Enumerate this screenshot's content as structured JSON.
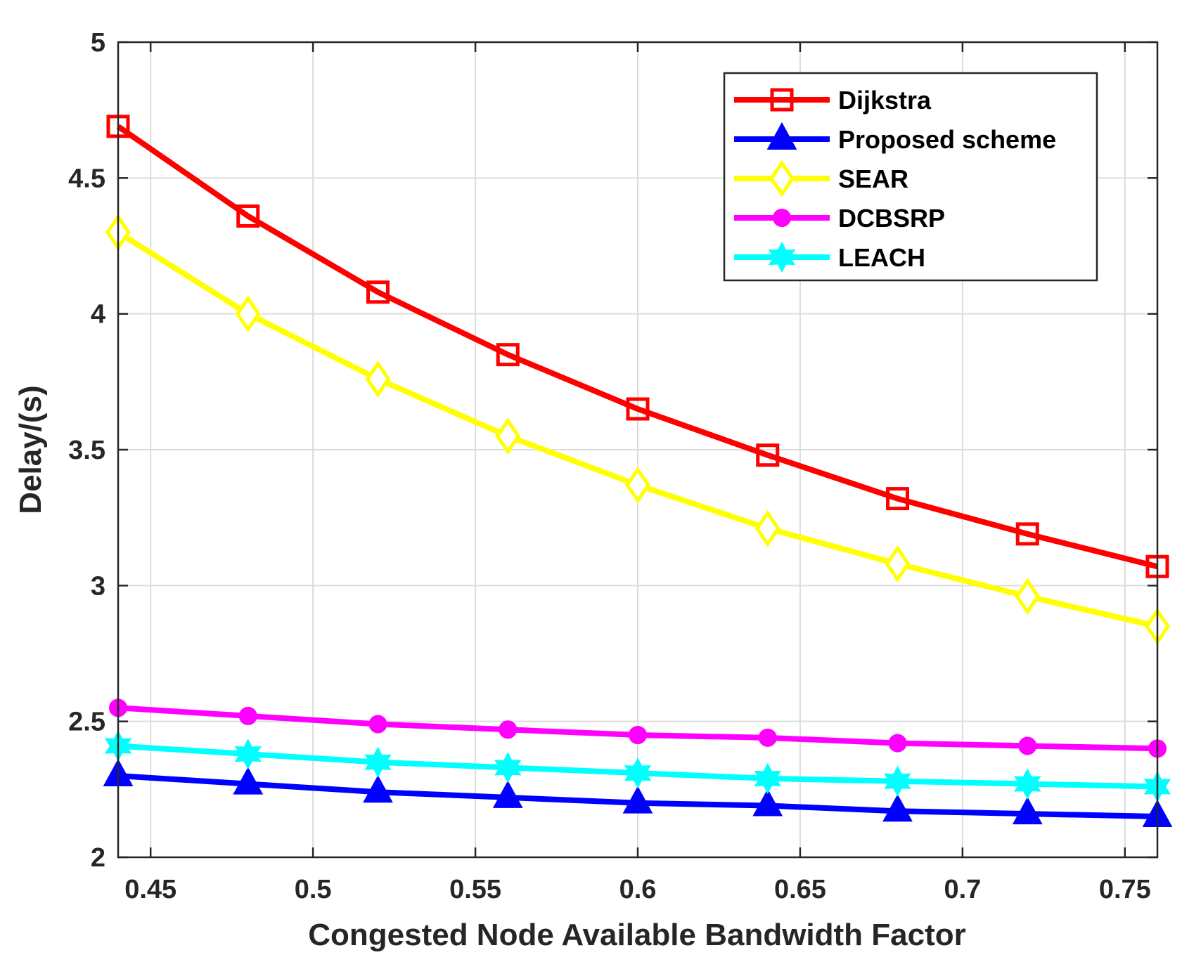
{
  "chart_data": {
    "type": "line",
    "title": "",
    "xlabel": "Congested Node Available Bandwidth Factor",
    "ylabel": "Delay/(s)",
    "xlim": [
      0.44,
      0.76
    ],
    "ylim": [
      2,
      5
    ],
    "grid": true,
    "legend_position": "top-right",
    "x": [
      0.44,
      0.48,
      0.52,
      0.56,
      0.6,
      0.64,
      0.68,
      0.72,
      0.76
    ],
    "xticks": [
      0.45,
      0.5,
      0.55,
      0.6,
      0.65,
      0.7,
      0.75
    ],
    "xtick_labels": [
      "0.45",
      "0.5",
      "0.55",
      "0.6",
      "0.65",
      "0.7",
      "0.75"
    ],
    "yticks": [
      2,
      2.5,
      3,
      3.5,
      4,
      4.5,
      5
    ],
    "ytick_labels": [
      "2",
      "2.5",
      "3",
      "3.5",
      "4",
      "4.5",
      "5"
    ],
    "series": [
      {
        "name": "Dijkstra",
        "color": "#ff0000",
        "marker": "square",
        "values": [
          4.69,
          4.36,
          4.08,
          3.85,
          3.65,
          3.48,
          3.32,
          3.19,
          3.07
        ]
      },
      {
        "name": "Proposed scheme",
        "color": "#0000ff",
        "marker": "triangle",
        "values": [
          2.3,
          2.27,
          2.24,
          2.22,
          2.2,
          2.19,
          2.17,
          2.16,
          2.15
        ]
      },
      {
        "name": "SEAR",
        "color": "#ffff00",
        "marker": "diamond",
        "values": [
          4.3,
          4.0,
          3.76,
          3.55,
          3.37,
          3.21,
          3.08,
          2.96,
          2.85
        ]
      },
      {
        "name": "DCBSRP",
        "color": "#ff00ff",
        "marker": "circle",
        "values": [
          2.55,
          2.52,
          2.49,
          2.47,
          2.45,
          2.44,
          2.42,
          2.41,
          2.4
        ]
      },
      {
        "name": "LEACH",
        "color": "#00ffff",
        "marker": "hexagram",
        "values": [
          2.41,
          2.38,
          2.35,
          2.33,
          2.31,
          2.29,
          2.28,
          2.27,
          2.26
        ]
      }
    ]
  }
}
